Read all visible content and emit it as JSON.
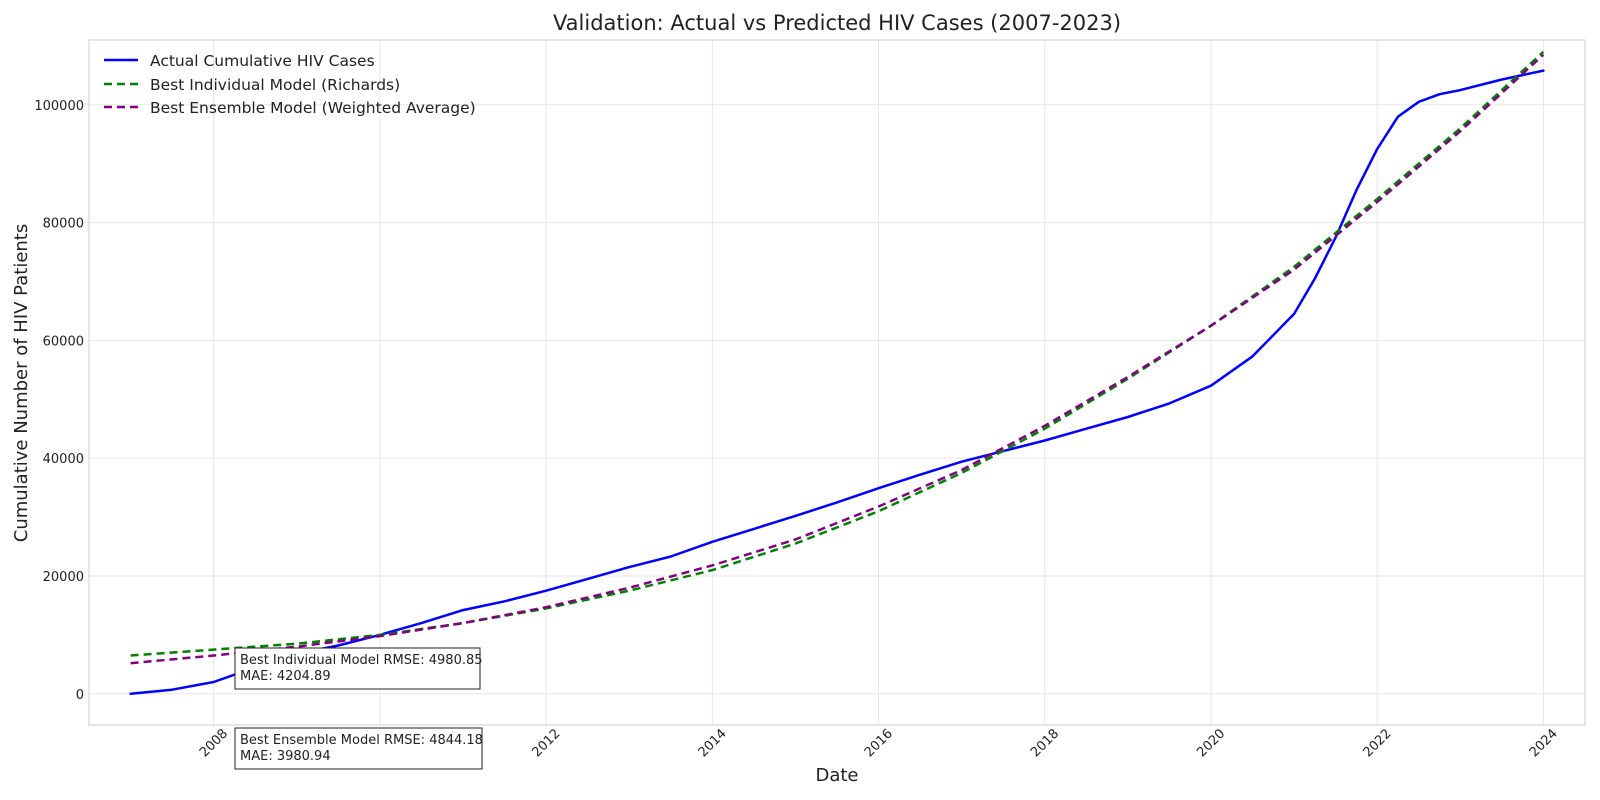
{
  "chart_data": {
    "type": "line",
    "title": "Validation: Actual vs Predicted HIV Cases (2007-2023)",
    "xlabel": "Date",
    "ylabel": "Cumulative Number of HIV Patients",
    "xlim": [
      "2006-07-01",
      "2024-07-01"
    ],
    "ylim": [
      -5300,
      111000
    ],
    "x_ticks": [
      "2008",
      "2010",
      "2012",
      "2014",
      "2016",
      "2018",
      "2020",
      "2022",
      "2024"
    ],
    "y_ticks": [
      0,
      20000,
      40000,
      60000,
      80000,
      100000
    ],
    "grid": true,
    "legend_position": "top-left",
    "series": [
      {
        "name": "Actual Cumulative HIV Cases",
        "color": "#0000ff",
        "style": "solid",
        "x": [
          "2007-01-01",
          "2007-07-01",
          "2008-01-01",
          "2008-07-01",
          "2009-01-01",
          "2009-07-01",
          "2010-01-01",
          "2010-07-01",
          "2011-01-01",
          "2011-07-01",
          "2012-01-01",
          "2012-07-01",
          "2013-01-01",
          "2013-07-01",
          "2014-01-01",
          "2014-07-01",
          "2015-01-01",
          "2015-07-01",
          "2016-01-01",
          "2016-07-01",
          "2017-01-01",
          "2017-07-01",
          "2018-01-01",
          "2018-07-01",
          "2019-01-01",
          "2019-07-01",
          "2020-01-01",
          "2020-07-01",
          "2021-01-01",
          "2021-04-01",
          "2021-07-01",
          "2021-10-01",
          "2022-01-01",
          "2022-04-01",
          "2022-07-01",
          "2022-10-01",
          "2023-01-01",
          "2023-07-01",
          "2024-01-01"
        ],
        "y": [
          0,
          700,
          2000,
          4500,
          6800,
          8200,
          10000,
          12000,
          14200,
          15700,
          17500,
          19500,
          21500,
          23300,
          25800,
          28000,
          30200,
          32500,
          34900,
          37200,
          39400,
          41200,
          43000,
          45000,
          47000,
          49300,
          52300,
          57300,
          64500,
          70500,
          77500,
          85500,
          92500,
          98000,
          100500,
          101800,
          102500,
          104300,
          105800
        ]
      },
      {
        "name": "Best Individual Model (Richards)",
        "color": "#008000",
        "style": "dashed",
        "x": [
          "2007-01-01",
          "2008-01-01",
          "2009-01-01",
          "2010-01-01",
          "2011-01-01",
          "2012-01-01",
          "2013-01-01",
          "2014-01-01",
          "2015-01-01",
          "2016-01-01",
          "2017-01-01",
          "2018-01-01",
          "2019-01-01",
          "2020-01-01",
          "2021-01-01",
          "2022-01-01",
          "2023-01-01",
          "2024-01-01"
        ],
        "y": [
          6500,
          7500,
          8500,
          10000,
          12000,
          14500,
          17500,
          21000,
          25500,
          31000,
          37500,
          45000,
          53500,
          62500,
          72500,
          84000,
          96000,
          109000
        ]
      },
      {
        "name": "Best Ensemble Model (Weighted Average)",
        "color": "#800080",
        "style": "dashed",
        "x": [
          "2007-01-01",
          "2008-01-01",
          "2009-01-01",
          "2010-01-01",
          "2011-01-01",
          "2012-01-01",
          "2013-01-01",
          "2014-01-01",
          "2015-01-01",
          "2016-01-01",
          "2017-01-01",
          "2018-01-01",
          "2019-01-01",
          "2020-01-01",
          "2021-01-01",
          "2022-01-01",
          "2023-01-01",
          "2024-01-01"
        ],
        "y": [
          5200,
          6500,
          8000,
          9800,
          12000,
          14700,
          18000,
          21800,
          26200,
          31800,
          38000,
          45500,
          53800,
          62500,
          72000,
          83500,
          95500,
          108500
        ]
      }
    ],
    "annotations": [
      {
        "line1": "Best Individual Model RMSE: 4980.85",
        "line2": "MAE: 4204.89"
      },
      {
        "line1": "Best Ensemble Model RMSE: 4844.18",
        "line2": "MAE: 3980.94"
      }
    ]
  }
}
